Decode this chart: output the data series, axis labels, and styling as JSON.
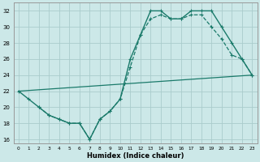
{
  "xlabel": "Humidex (Indice chaleur)",
  "bg_color": "#cce8e8",
  "grid_color": "#aacccc",
  "line_color": "#1a7a6a",
  "xlim": [
    -0.5,
    23.5
  ],
  "ylim": [
    15.5,
    33
  ],
  "xticks": [
    0,
    1,
    2,
    3,
    4,
    5,
    6,
    7,
    8,
    9,
    10,
    11,
    12,
    13,
    14,
    15,
    16,
    17,
    18,
    19,
    20,
    21,
    22,
    23
  ],
  "yticks": [
    16,
    18,
    20,
    22,
    24,
    26,
    28,
    30,
    32
  ],
  "line1_x": [
    0,
    1,
    2,
    3,
    4,
    5,
    6,
    7,
    8,
    9,
    10,
    11,
    12,
    13,
    14,
    15,
    16,
    17,
    18,
    19,
    20,
    21,
    22,
    23
  ],
  "line1_y": [
    22,
    21,
    20,
    19,
    18.5,
    18,
    18,
    16,
    18.5,
    19.5,
    21,
    26,
    29,
    32,
    32,
    31,
    31,
    32,
    32,
    32,
    30,
    28,
    26,
    24
  ],
  "line2_x": [
    0,
    23
  ],
  "line2_y": [
    22,
    24
  ],
  "line3_x": [
    2,
    3,
    4,
    5,
    6,
    7,
    8,
    9,
    10,
    11,
    12,
    13,
    14,
    15,
    16,
    17,
    18,
    19,
    20,
    21,
    22,
    23
  ],
  "line3_y": [
    20,
    19,
    18.5,
    18,
    18,
    16,
    18.5,
    19.5,
    21,
    25,
    29,
    31,
    31.5,
    31,
    31,
    31.5,
    31.5,
    30,
    28.5,
    26.5,
    26,
    24
  ]
}
